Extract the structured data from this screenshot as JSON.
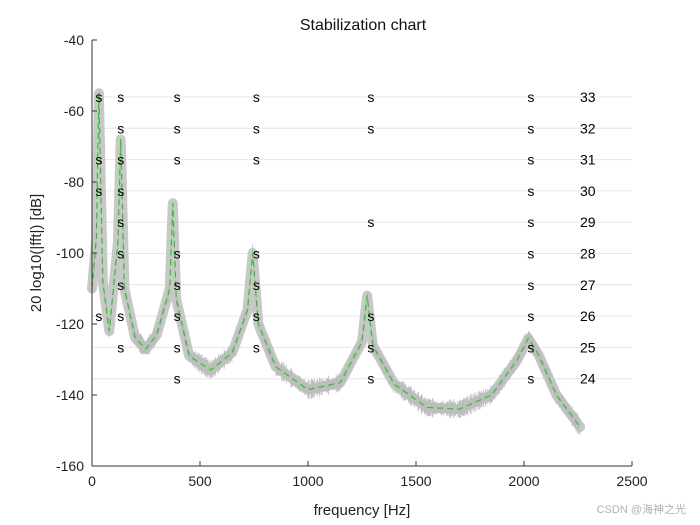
{
  "chart_data": {
    "type": "line",
    "title": "Stabilization chart",
    "xlabel": "frequency [Hz]",
    "ylabel": "20 log10(|fft|) [dB]",
    "xlim": [
      0,
      2500
    ],
    "ylim": [
      -160,
      -40
    ],
    "xticks": [
      0,
      500,
      1000,
      1500,
      2000,
      2500
    ],
    "yticks": [
      -160,
      -140,
      -120,
      -100,
      -80,
      -60,
      -40
    ],
    "grid": "horizontal",
    "series": [
      {
        "style": "gray noise band",
        "color": "#c8c8c8",
        "x": [
          0,
          20,
          32,
          50,
          80,
          120,
          133,
          150,
          200,
          250,
          300,
          360,
          374,
          390,
          450,
          550,
          650,
          720,
          744,
          770,
          850,
          1000,
          1150,
          1250,
          1274,
          1300,
          1400,
          1550,
          1700,
          1850,
          1970,
          2020,
          2070,
          2150,
          2260
        ],
        "y": [
          -110,
          -96,
          -55,
          -108,
          -122,
          -97,
          -68,
          -110,
          -124,
          -127,
          -123,
          -110,
          -86,
          -113,
          -129,
          -133,
          -128,
          -116,
          -100,
          -120,
          -132,
          -138.5,
          -136.5,
          -125,
          -112,
          -126,
          -137,
          -143.5,
          -144,
          -140,
          -130,
          -124,
          -129,
          -140,
          -149
        ]
      },
      {
        "style": "green dashed line",
        "color": "#22c922",
        "x": [
          0,
          20,
          32,
          50,
          80,
          120,
          133,
          150,
          200,
          250,
          300,
          360,
          374,
          390,
          450,
          550,
          650,
          720,
          744,
          770,
          850,
          1000,
          1150,
          1250,
          1274,
          1300,
          1400,
          1550,
          1700,
          1850,
          1970,
          2020,
          2070,
          2150,
          2260
        ],
        "y": [
          -110,
          -96,
          -55,
          -108,
          -122,
          -97,
          -68,
          -110,
          -124,
          -127,
          -123,
          -110,
          -86,
          -113,
          -129,
          -133,
          -128,
          -116,
          -100,
          -120,
          -132,
          -138.5,
          -136.5,
          -125,
          -112,
          -126,
          -137,
          -143.5,
          -144,
          -140,
          -130,
          -124,
          -129,
          -140,
          -149
        ]
      }
    ],
    "stabilization_marks": [
      {
        "order": 33,
        "label": "33",
        "freqs": [
          32,
          133,
          394,
          761,
          1291,
          2032
        ]
      },
      {
        "order": 32,
        "label": "32",
        "freqs": [
          133,
          394,
          761,
          1291,
          2032
        ]
      },
      {
        "order": 31,
        "label": "31",
        "freqs": [
          32,
          133,
          394,
          761,
          2032
        ]
      },
      {
        "order": 30,
        "label": "30",
        "freqs": [
          32,
          133,
          2032
        ]
      },
      {
        "order": 29,
        "label": "29",
        "freqs": [
          133,
          1291,
          2032
        ]
      },
      {
        "order": 28,
        "label": "28",
        "freqs": [
          133,
          394,
          761,
          2032
        ]
      },
      {
        "order": 27,
        "label": "27",
        "freqs": [
          133,
          394,
          761,
          2032
        ]
      },
      {
        "order": 26,
        "label": "26",
        "freqs": [
          32,
          133,
          394,
          761,
          1291,
          2032
        ]
      },
      {
        "order": 25,
        "label": "25",
        "freqs": [
          133,
          394,
          761,
          1291,
          2032
        ]
      },
      {
        "order": 24,
        "label": "24",
        "freqs": [
          394,
          1291,
          2032
        ]
      }
    ],
    "mark_symbol": "s"
  },
  "watermark": "CSDN @海神之光"
}
